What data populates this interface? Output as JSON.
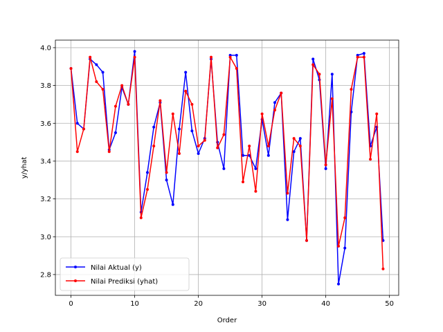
{
  "chart_data": {
    "type": "line",
    "xlabel": "Order",
    "ylabel": "y/yhat",
    "xlim": [
      -2.45,
      51.45
    ],
    "ylim": [
      2.69,
      4.04
    ],
    "x_ticks": [
      0,
      10,
      20,
      30,
      40,
      50
    ],
    "y_ticks": [
      2.8,
      3.0,
      3.2,
      3.4,
      3.6,
      3.8,
      4.0
    ],
    "x_tick_labels": [
      "0",
      "10",
      "20",
      "30",
      "40",
      "50"
    ],
    "y_tick_labels": [
      "2.8",
      "3.0",
      "3.2",
      "3.4",
      "3.6",
      "3.8",
      "4.0"
    ],
    "grid": true,
    "legend_position": "lower-left",
    "x": [
      0,
      1,
      2,
      3,
      4,
      5,
      6,
      7,
      8,
      9,
      10,
      11,
      12,
      13,
      14,
      15,
      16,
      17,
      18,
      19,
      20,
      21,
      22,
      23,
      24,
      25,
      26,
      27,
      28,
      29,
      30,
      31,
      32,
      33,
      34,
      35,
      36,
      37,
      38,
      39,
      40,
      41,
      42,
      43,
      44,
      45,
      46,
      47,
      48,
      49
    ],
    "series": [
      {
        "name": "Nilai Aktual (y)",
        "color": "#0000ff",
        "values": [
          3.89,
          3.6,
          3.57,
          3.94,
          3.91,
          3.87,
          3.46,
          3.55,
          3.79,
          3.7,
          3.98,
          3.13,
          3.34,
          3.58,
          3.71,
          3.3,
          3.17,
          3.57,
          3.87,
          3.56,
          3.44,
          3.52,
          3.94,
          3.5,
          3.36,
          3.96,
          3.96,
          3.43,
          3.43,
          3.36,
          3.62,
          3.43,
          3.71,
          3.76,
          3.09,
          3.45,
          3.52,
          2.98,
          3.94,
          3.83,
          3.36,
          3.86,
          2.75,
          2.94,
          3.66,
          3.96,
          3.97,
          3.48,
          3.58,
          2.98
        ]
      },
      {
        "name": "Nilai Prediksi (yhat)",
        "color": "#ff0000",
        "values": [
          3.89,
          3.45,
          3.57,
          3.95,
          3.82,
          3.78,
          3.45,
          3.69,
          3.8,
          3.7,
          3.95,
          3.1,
          3.25,
          3.48,
          3.72,
          3.34,
          3.65,
          3.44,
          3.77,
          3.7,
          3.48,
          3.51,
          3.95,
          3.47,
          3.54,
          3.95,
          3.89,
          3.29,
          3.48,
          3.24,
          3.65,
          3.48,
          3.67,
          3.76,
          3.23,
          3.52,
          3.48,
          2.98,
          3.91,
          3.86,
          3.38,
          3.73,
          2.95,
          3.1,
          3.78,
          3.95,
          3.95,
          3.41,
          3.65,
          2.83
        ]
      }
    ]
  }
}
